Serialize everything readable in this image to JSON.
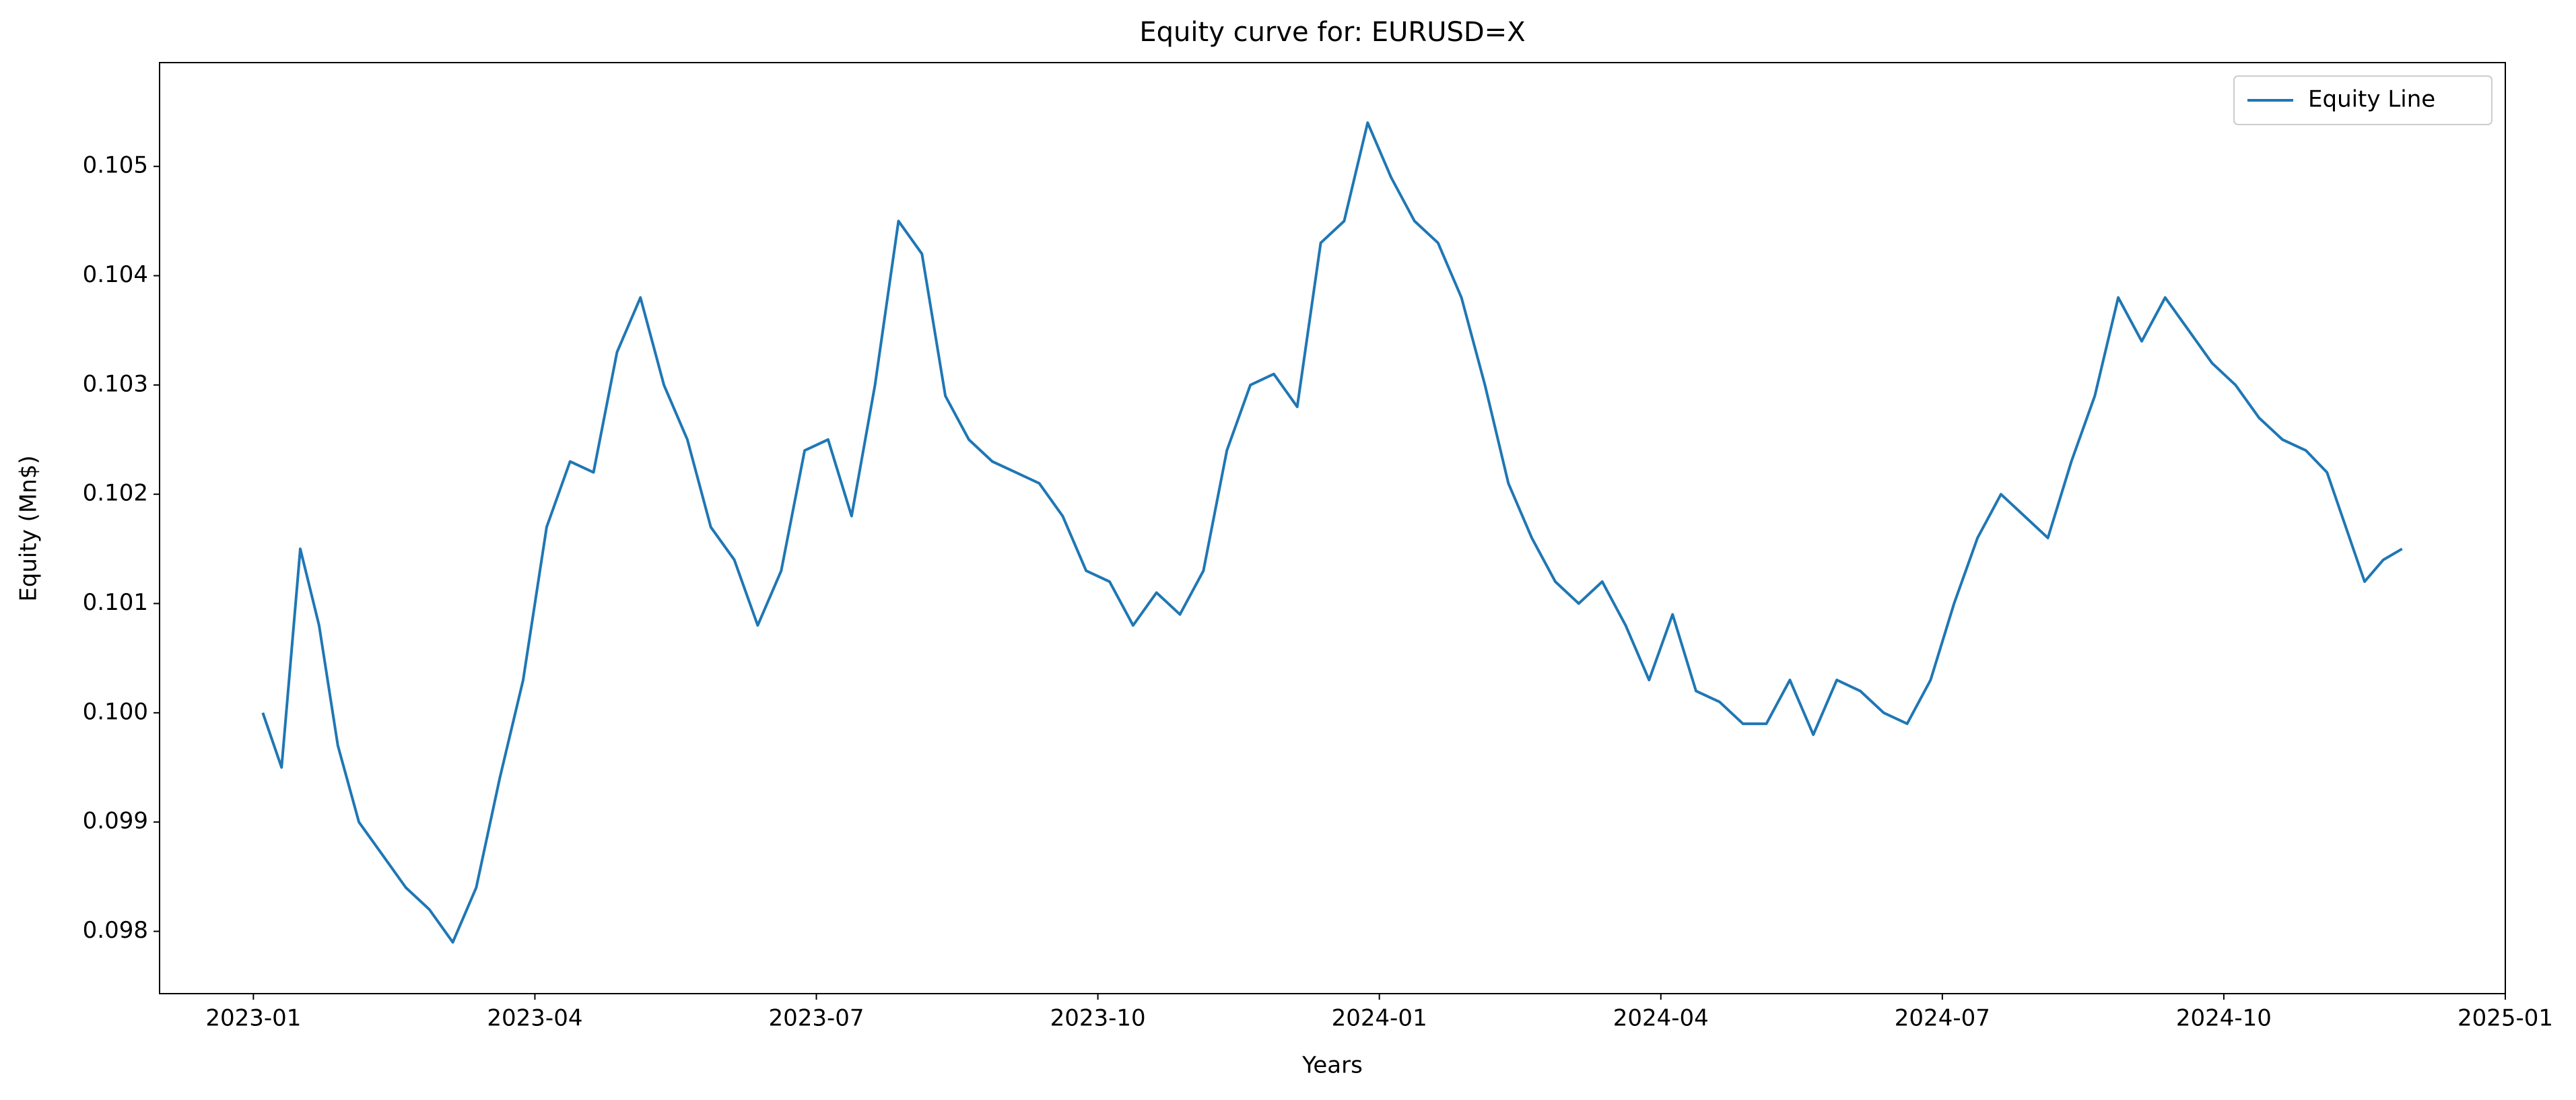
{
  "chart_data": {
    "type": "line",
    "title": "Equity curve for: EURUSD=X",
    "x_label": "Years",
    "y_label": "Equity (Mn$)",
    "x": [
      "2023-01",
      "2023-01",
      "2023-01",
      "2023-01",
      "2023-01",
      "2023-02",
      "2023-02",
      "2023-02",
      "2023-02",
      "2023-03",
      "2023-03",
      "2023-03",
      "2023-03",
      "2023-04",
      "2023-04",
      "2023-04",
      "2023-04",
      "2023-05",
      "2023-05",
      "2023-05",
      "2023-05",
      "2023-06",
      "2023-06",
      "2023-06",
      "2023-06",
      "2023-07",
      "2023-07",
      "2023-07",
      "2023-07",
      "2023-08",
      "2023-08",
      "2023-08",
      "2023-08",
      "2023-09",
      "2023-09",
      "2023-09",
      "2023-09",
      "2023-10",
      "2023-10",
      "2023-10",
      "2023-10",
      "2023-11",
      "2023-11",
      "2023-11",
      "2023-11",
      "2023-12",
      "2023-12",
      "2023-12",
      "2023-12",
      "2024-01",
      "2024-01",
      "2024-01",
      "2024-01",
      "2024-02",
      "2024-02",
      "2024-02",
      "2024-02",
      "2024-03",
      "2024-03",
      "2024-03",
      "2024-03",
      "2024-04",
      "2024-04",
      "2024-04",
      "2024-04",
      "2024-05",
      "2024-05",
      "2024-05",
      "2024-05",
      "2024-06",
      "2024-06",
      "2024-06",
      "2024-06",
      "2024-07",
      "2024-07",
      "2024-07",
      "2024-07",
      "2024-08",
      "2024-08",
      "2024-08",
      "2024-08",
      "2024-09",
      "2024-09",
      "2024-09",
      "2024-09",
      "2024-10",
      "2024-10",
      "2024-10",
      "2024-10",
      "2024-11",
      "2024-11",
      "2024-11",
      "2024-11",
      "2024-11"
    ],
    "series": [
      {
        "name": "Equity Line",
        "color": "#1f77b4",
        "values": [
          0.1,
          0.0995,
          0.1015,
          0.1008,
          0.0997,
          0.099,
          0.0987,
          0.0984,
          0.0982,
          0.0979,
          0.0984,
          0.0994,
          0.1003,
          0.1017,
          0.1023,
          0.1022,
          0.1033,
          0.1038,
          0.103,
          0.1025,
          0.1017,
          0.1014,
          0.1008,
          0.1013,
          0.1024,
          0.1025,
          0.1018,
          0.103,
          0.1045,
          0.1042,
          0.1029,
          0.1025,
          0.1023,
          0.1022,
          0.1021,
          0.1018,
          0.1013,
          0.1012,
          0.1008,
          0.1011,
          0.1009,
          0.1013,
          0.1024,
          0.103,
          0.1031,
          0.1028,
          0.1043,
          0.1045,
          0.1054,
          0.1049,
          0.1045,
          0.1043,
          0.1038,
          0.103,
          0.1021,
          0.1016,
          0.1012,
          0.101,
          0.1012,
          0.1008,
          0.1003,
          0.1009,
          0.1002,
          0.1001,
          0.0999,
          0.0999,
          0.1003,
          0.0998,
          0.1003,
          0.1002,
          0.1,
          0.0999,
          0.1003,
          0.101,
          0.1016,
          0.102,
          0.1018,
          0.1016,
          0.1023,
          0.1029,
          0.1038,
          0.1034,
          0.1038,
          0.1035,
          0.1032,
          0.103,
          0.1027,
          0.1025,
          0.1024,
          0.1022,
          0.1017,
          0.1012,
          0.1014,
          0.1015
        ]
      }
    ],
    "xlim": [
      "2022-12",
      "2025-01"
    ],
    "xticks": [
      "2023-01",
      "2023-04",
      "2023-07",
      "2023-10",
      "2024-01",
      "2024-04",
      "2024-07",
      "2024-10",
      "2025-01"
    ],
    "ylim": [
      0.09743,
      0.10595
    ],
    "yticks": [
      0.098,
      0.099,
      {
        "value": 0.1,
        "label": "0.100"
      },
      0.101,
      0.102,
      0.103,
      0.104,
      0.105
    ],
    "grid": false,
    "legend": "upper right"
  }
}
